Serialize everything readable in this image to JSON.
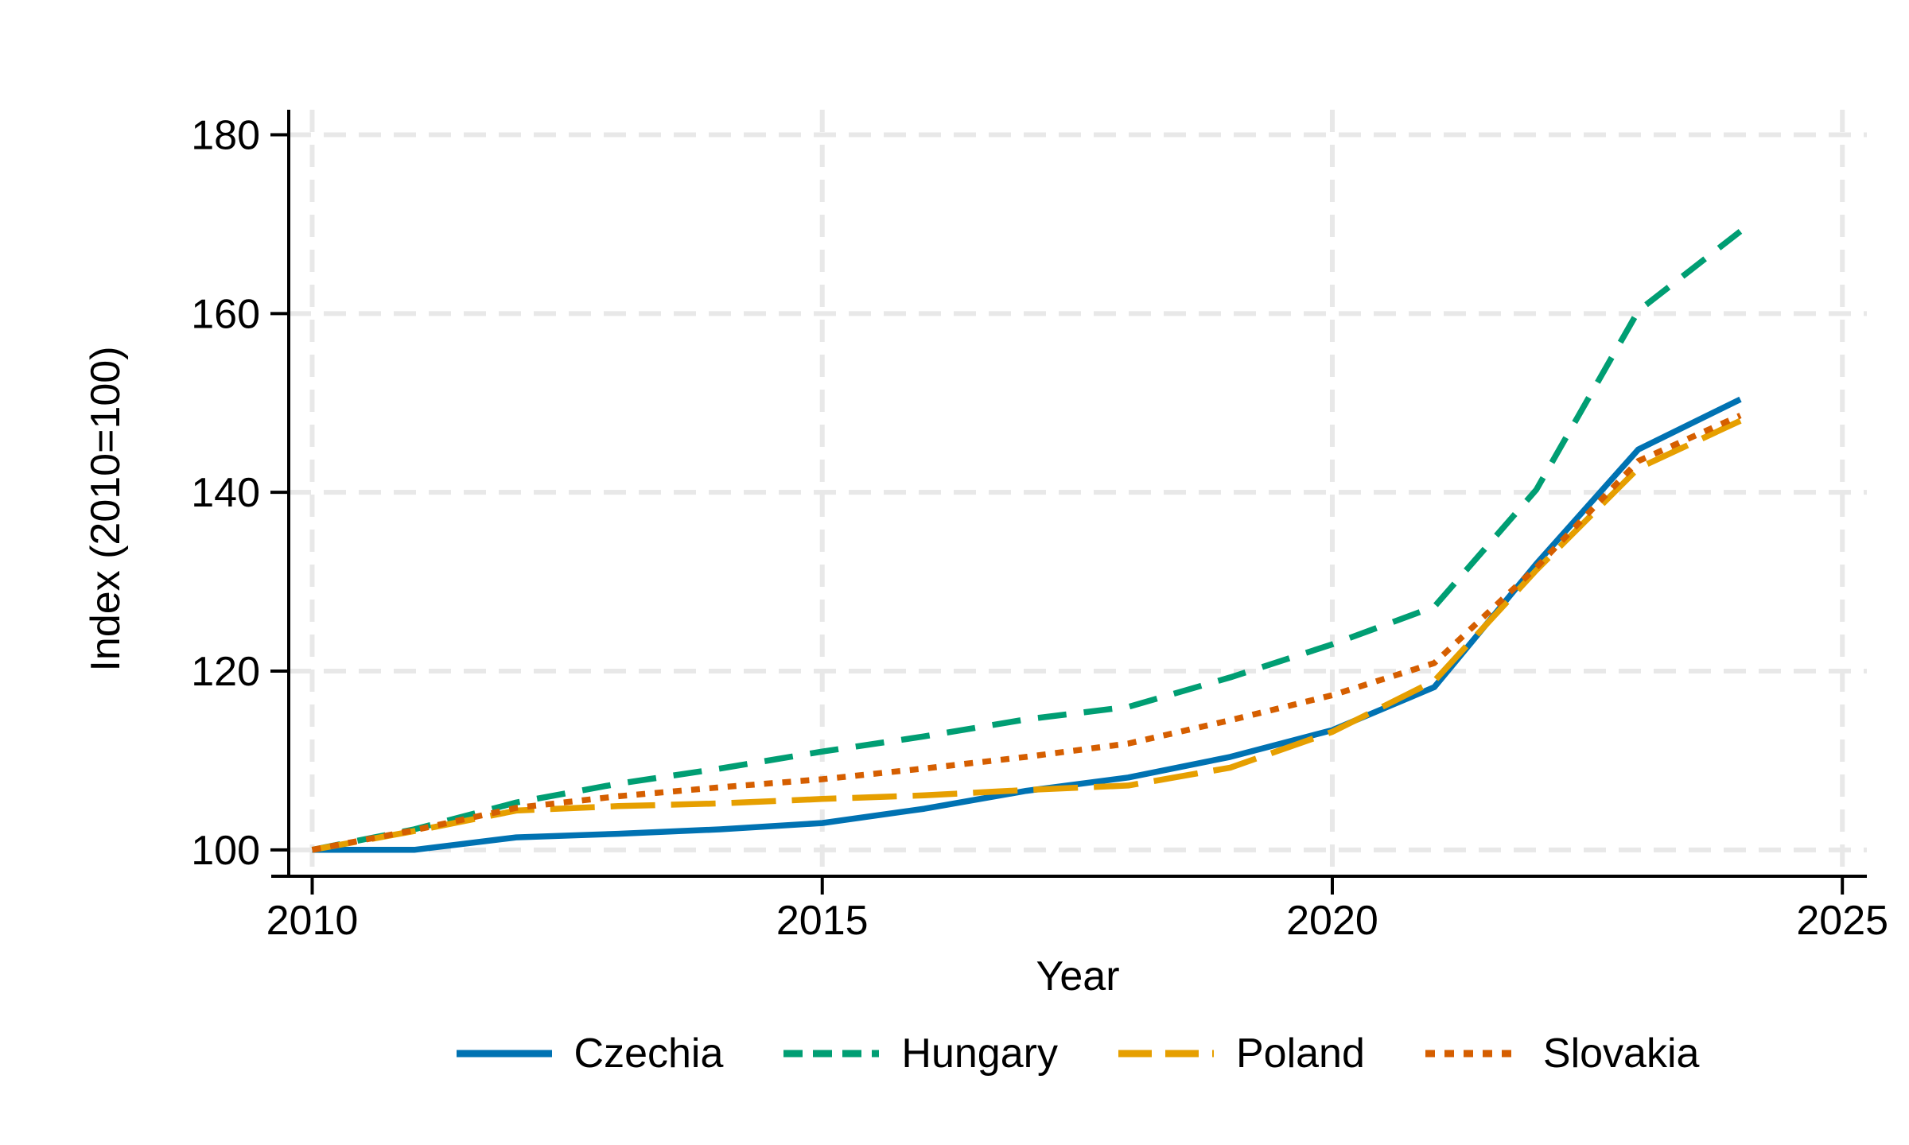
{
  "chart_data": {
    "type": "line",
    "title": "",
    "xlabel": "Year",
    "ylabel": "Index (2010=100)",
    "x": [
      2010,
      2011,
      2012,
      2013,
      2014,
      2015,
      2016,
      2017,
      2018,
      2019,
      2020,
      2021,
      2022,
      2023,
      2024
    ],
    "series": [
      {
        "name": "Czechia",
        "color": "#0072b2",
        "line_style": "solid",
        "values": [
          100,
          100,
          101.4,
          101.8,
          102.3,
          103.0,
          104.6,
          106.6,
          108.1,
          110.4,
          113.4,
          118.2,
          132.0,
          144.8,
          150.4
        ]
      },
      {
        "name": "Hungary",
        "color": "#009e73",
        "line_style": "dashed",
        "values": [
          100,
          102.3,
          105.3,
          107.4,
          109.1,
          111.0,
          112.7,
          114.6,
          116.0,
          119.3,
          123.0,
          127.2,
          140.3,
          160.3,
          169.2
        ]
      },
      {
        "name": "Poland",
        "color": "#e69f00",
        "line_style": "longdash",
        "values": [
          100,
          102.1,
          104.4,
          104.9,
          105.2,
          105.7,
          106.1,
          106.7,
          107.2,
          109.2,
          113.2,
          118.9,
          131.3,
          142.7,
          148.0
        ]
      },
      {
        "name": "Slovakia",
        "color": "#d55e00",
        "line_style": "dotted",
        "values": [
          100,
          102.2,
          104.7,
          106.0,
          107.0,
          107.9,
          109.1,
          110.4,
          111.9,
          114.5,
          117.3,
          120.9,
          131.6,
          143.5,
          148.6
        ]
      }
    ],
    "x_ticks": [
      2010,
      2015,
      2020,
      2025
    ],
    "y_ticks": [
      100,
      120,
      140,
      160,
      180
    ],
    "xlim": [
      2009.77,
      2025.24
    ],
    "ylim": [
      97.05,
      182.8
    ],
    "grid": true,
    "grid_color": "#e8e8e8",
    "axis_color": "#000000",
    "background_color": "#ffffff",
    "legend_position": "bottom"
  }
}
